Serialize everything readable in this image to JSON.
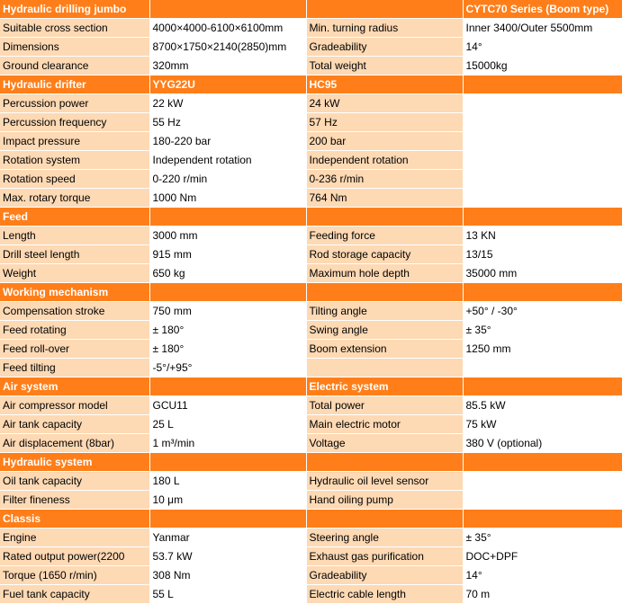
{
  "accent_color": "#ff7e19",
  "label_fill_color": "#fdd9b4",
  "rows": [
    {
      "type": "header",
      "name": "section-header-hydraulic-drilling-jumbo",
      "cells": [
        "Hydraulic drilling jumbo",
        "",
        "",
        "CYTC70 Series (Boom type)"
      ]
    },
    {
      "type": "data",
      "cells": [
        "Suitable cross section",
        "4000×4000-6100×6100mm",
        "Min. turning radius",
        "Inner 3400/Outer 5500mm"
      ]
    },
    {
      "type": "data",
      "cells": [
        "Dimensions",
        "8700×1750×2140(2850)mm",
        "Gradeability",
        "14°"
      ]
    },
    {
      "type": "data",
      "cells": [
        "Ground clearance",
        "320mm",
        "Total weight",
        "15000kg"
      ]
    },
    {
      "type": "header",
      "name": "section-header-hydraulic-drifter",
      "cells": [
        "Hydraulic drifter",
        "YYG22U",
        "HC95",
        ""
      ]
    },
    {
      "type": "data",
      "cells": [
        "Percussion power",
        "22 kW",
        "24 kW",
        ""
      ]
    },
    {
      "type": "data",
      "cells": [
        "Percussion frequency",
        "55 Hz",
        "57 Hz",
        ""
      ]
    },
    {
      "type": "data",
      "cells": [
        "Impact pressure",
        "180-220  bar",
        "200  bar",
        ""
      ]
    },
    {
      "type": "data",
      "cells": [
        "Rotation system",
        "Independent rotation",
        "Independent rotation",
        ""
      ]
    },
    {
      "type": "data",
      "cells": [
        "Rotation speed",
        "0-220 r/min",
        "0-236 r/min",
        ""
      ]
    },
    {
      "type": "data",
      "cells": [
        "Max. rotary torque",
        "1000 Nm",
        "764 Nm",
        ""
      ]
    },
    {
      "type": "header",
      "name": "section-header-feed",
      "cells": [
        "Feed",
        "",
        "",
        ""
      ]
    },
    {
      "type": "data",
      "cells": [
        "Length",
        "3000 mm",
        "Feeding force",
        "13 KN"
      ]
    },
    {
      "type": "data",
      "cells": [
        "Drill steel length",
        "915 mm",
        "Rod storage capacity",
        "13/15"
      ]
    },
    {
      "type": "data",
      "cells": [
        "Weight",
        "650 kg",
        "Maximum hole depth",
        "35000 mm"
      ]
    },
    {
      "type": "header",
      "name": "section-header-working-mechanism",
      "cells": [
        "Working mechanism",
        "",
        "",
        ""
      ]
    },
    {
      "type": "data",
      "cells": [
        "Compensation stroke",
        "750 mm",
        "Tilting angle",
        "+50° / -30°"
      ]
    },
    {
      "type": "data",
      "cells": [
        "Feed rotating",
        "± 180°",
        "Swing angle",
        "± 35°"
      ]
    },
    {
      "type": "data",
      "cells": [
        "Feed roll-over",
        "± 180°",
        "Boom extension",
        "1250 mm"
      ]
    },
    {
      "type": "data",
      "cells": [
        "Feed tilting",
        "-5°/+95°",
        "",
        ""
      ]
    },
    {
      "type": "header",
      "name": "section-header-air-system",
      "cells": [
        "Air system",
        "",
        "Electric system",
        ""
      ]
    },
    {
      "type": "data",
      "cells": [
        "Air compressor model",
        "GCU11",
        "Total power",
        "85.5 kW"
      ]
    },
    {
      "type": "data",
      "cells": [
        "Air tank capacity",
        "25 L",
        "Main electric motor",
        "75 kW"
      ]
    },
    {
      "type": "data",
      "cells": [
        "Air displacement (8bar)",
        "1 m³/min",
        "Voltage",
        "380 V (optional)"
      ]
    },
    {
      "type": "header",
      "name": "section-header-hydraulic-system",
      "cells": [
        "Hydraulic system",
        "",
        "",
        ""
      ]
    },
    {
      "type": "data",
      "cells": [
        "Oil tank capacity",
        "180 L",
        "Hydraulic oil level sensor",
        ""
      ]
    },
    {
      "type": "data",
      "cells": [
        "Filter fineness",
        "10 μm",
        "Hand oiling pump",
        ""
      ]
    },
    {
      "type": "header",
      "name": "section-header-classis",
      "cells": [
        "Classis",
        "",
        "",
        ""
      ]
    },
    {
      "type": "data",
      "cells": [
        "Engine",
        "Yanmar",
        "Steering angle",
        "± 35°"
      ]
    },
    {
      "type": "data",
      "cells": [
        "Rated output power(2200",
        "53.7 kW",
        "Exhaust gas purification",
        "DOC+DPF"
      ]
    },
    {
      "type": "data",
      "cells": [
        "Torque (1650 r/min)",
        "308 Nm",
        "Gradeability",
        "14°"
      ]
    },
    {
      "type": "data",
      "cells": [
        "Fuel tank capacity",
        "55 L",
        "Electric cable length",
        "70 m"
      ]
    }
  ]
}
